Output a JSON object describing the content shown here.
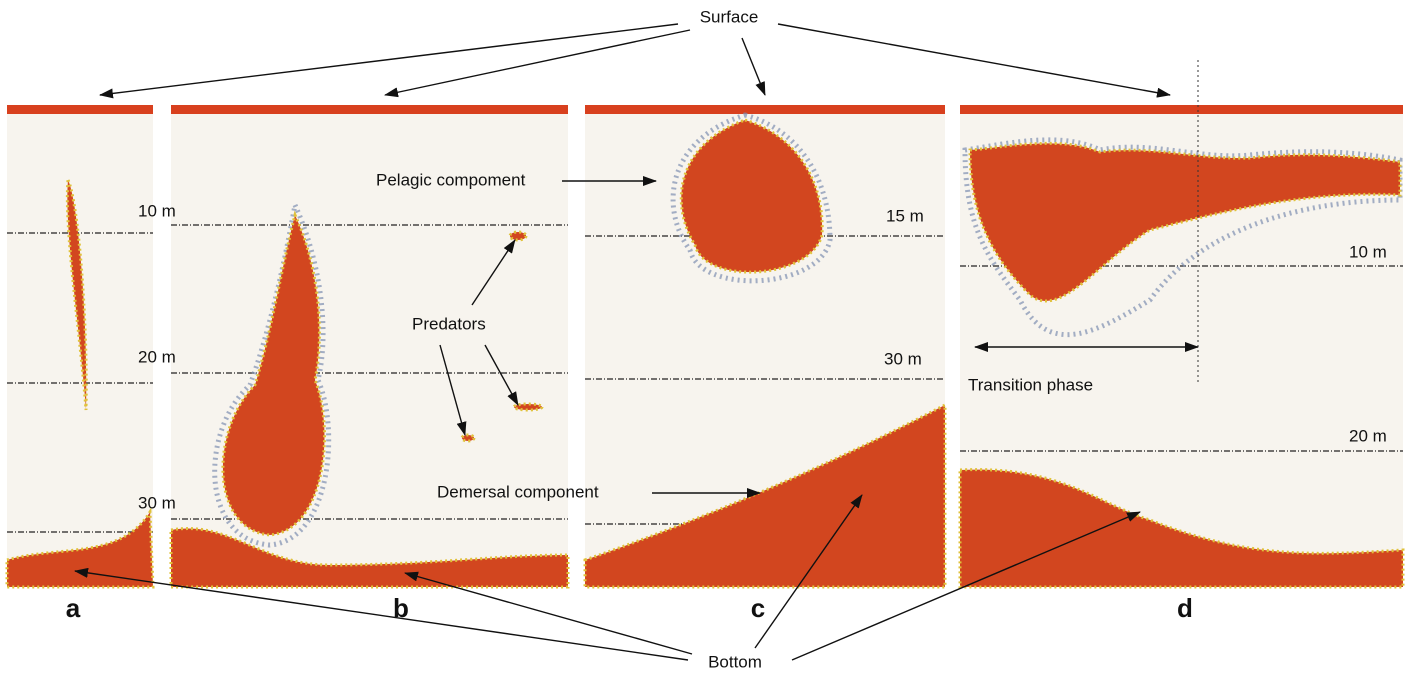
{
  "surface_label": "Surface",
  "bottom_label": "Bottom",
  "panels": [
    {
      "label": "a"
    },
    {
      "label": "b"
    },
    {
      "label": "c"
    },
    {
      "label": "d"
    }
  ],
  "depth_labels": [
    "10 m",
    "20 m",
    "30 m",
    "15 m",
    "30 m",
    "10 m",
    "20 m"
  ],
  "annotations": [
    "Pelagic compoment",
    "Predators",
    "Demersal component",
    "Transition phase"
  ]
}
